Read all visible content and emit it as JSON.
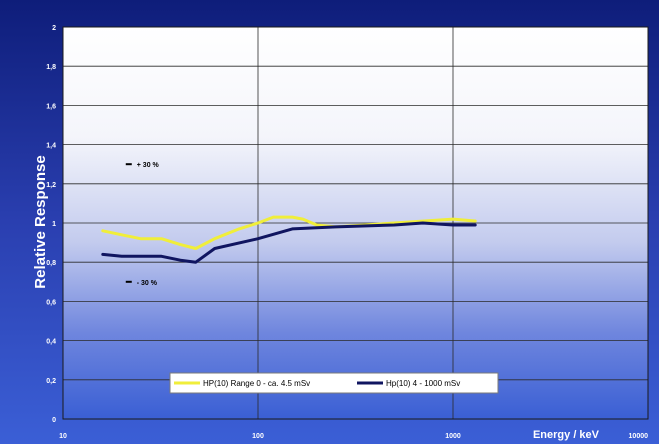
{
  "chart_data": {
    "type": "line",
    "x_scale": "log",
    "xlim": [
      10,
      10000
    ],
    "ylim": [
      0,
      2
    ],
    "x_ticks": [
      "10",
      "100",
      "1000",
      "10000"
    ],
    "y_ticks": [
      "0",
      "0,2",
      "0,4",
      "0,6",
      "0,8",
      "1",
      "1,2",
      "1,4",
      "1,6",
      "1,8",
      "2"
    ],
    "xlabel": "Energy / keV",
    "ylabel": "Relative Response",
    "grid": true,
    "legend_position": "bottom-center",
    "annotations": [
      {
        "text": "+ 30 %",
        "x": 22,
        "y": 1.3
      },
      {
        "text": "- 30 %",
        "x": 22,
        "y": 0.7
      }
    ],
    "series": [
      {
        "name": "HP(10) Range  0 - ca. 4.5 mSv",
        "color": "#f0ee3a",
        "x": [
          16,
          20,
          25,
          32,
          40,
          48,
          60,
          80,
          100,
          120,
          150,
          170,
          200,
          250,
          1000,
          1300
        ],
        "y": [
          0.96,
          0.94,
          0.92,
          0.92,
          0.89,
          0.87,
          0.92,
          0.97,
          1.0,
          1.03,
          1.03,
          1.02,
          0.99,
          0.98,
          1.02,
          1.01
        ]
      },
      {
        "name": "Hp(10) 4 - 1000 mSv",
        "color": "#101560",
        "x": [
          16,
          20,
          32,
          40,
          48,
          60,
          100,
          150,
          250,
          500,
          700,
          1000,
          1300
        ],
        "y": [
          0.84,
          0.83,
          0.83,
          0.81,
          0.8,
          0.87,
          0.92,
          0.97,
          0.98,
          0.99,
          1.0,
          0.99,
          0.99
        ]
      }
    ]
  }
}
